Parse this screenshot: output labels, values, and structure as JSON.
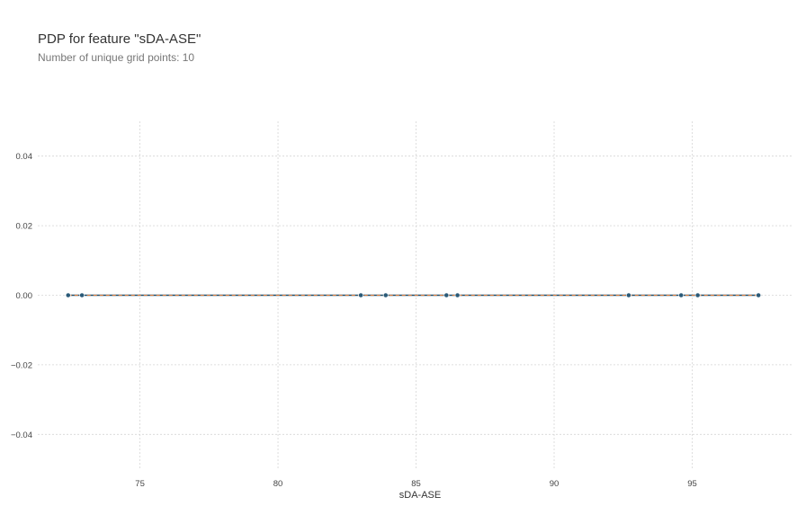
{
  "chart_data": {
    "type": "line",
    "title": "PDP for feature \"sDA-ASE\"",
    "subtitle": "Number of unique grid points: 10",
    "xlabel": "sDA-ASE",
    "ylabel": "",
    "xlim": [
      71.3,
      98.6
    ],
    "ylim": [
      -0.05,
      0.05
    ],
    "xticks": [
      75,
      80,
      85,
      90,
      95
    ],
    "yticks": [
      0.04,
      0.02,
      0.0,
      -0.02,
      -0.04
    ],
    "ytick_labels": [
      "0.04",
      "0.02",
      "0.00",
      "−0.02",
      "−0.04"
    ],
    "grid": true,
    "series": [
      {
        "x": [
          72.4,
          72.9,
          83.0,
          83.9,
          86.1,
          86.5,
          92.7,
          94.6,
          95.2,
          97.4
        ],
        "values": [
          0,
          0,
          0,
          0,
          0,
          0,
          0,
          0,
          0,
          0
        ]
      }
    ],
    "colors": {
      "line": "#1a4e6b",
      "zero_line": "#e07b39",
      "marker": "#2a5a78",
      "grid": "#d6d6d6",
      "tick_text": "#444444",
      "axis_label": "#333333"
    }
  }
}
